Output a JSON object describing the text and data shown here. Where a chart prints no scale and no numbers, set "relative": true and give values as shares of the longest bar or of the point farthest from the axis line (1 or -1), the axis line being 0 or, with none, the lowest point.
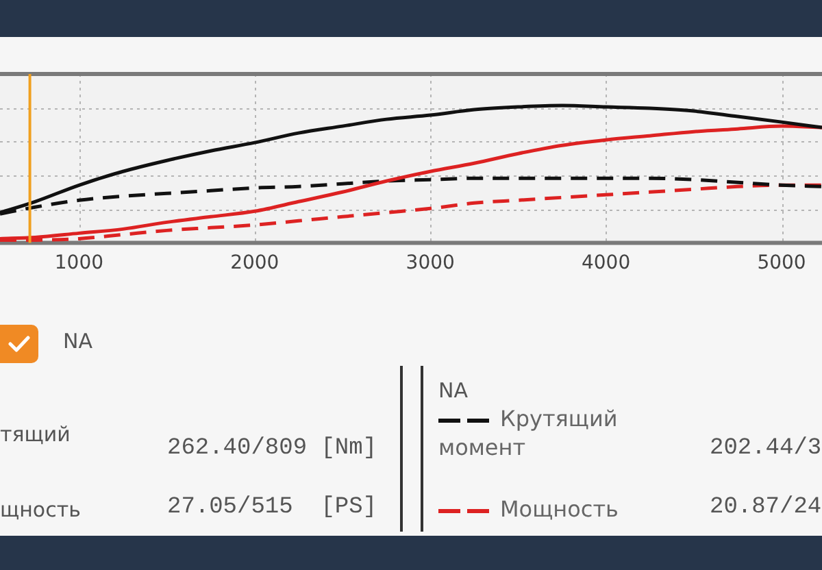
{
  "chart_data": {
    "type": "line",
    "relative": true,
    "x": [
      550,
      750,
      1000,
      1250,
      1500,
      1750,
      2000,
      2250,
      2500,
      2750,
      3000,
      3250,
      3500,
      3750,
      4000,
      4250,
      4500,
      4750,
      5000,
      5230
    ],
    "series": [
      {
        "color": "#111111",
        "line_style": "solid",
        "values": [
          0.22,
          0.3,
          0.42,
          0.52,
          0.6,
          0.67,
          0.73,
          0.8,
          0.85,
          0.9,
          0.93,
          0.97,
          0.99,
          1.0,
          0.99,
          0.98,
          0.96,
          0.92,
          0.88,
          0.84
        ]
      },
      {
        "color": "#dd2222",
        "line_style": "solid",
        "values": [
          0.03,
          0.04,
          0.07,
          0.1,
          0.15,
          0.19,
          0.23,
          0.3,
          0.37,
          0.45,
          0.52,
          0.58,
          0.65,
          0.71,
          0.75,
          0.78,
          0.81,
          0.83,
          0.85,
          0.84
        ]
      },
      {
        "name": "Крутящий момент",
        "color": "#111111",
        "line_style": "dashed",
        "values": [
          0.21,
          0.26,
          0.31,
          0.34,
          0.36,
          0.38,
          0.4,
          0.41,
          0.43,
          0.45,
          0.46,
          0.47,
          0.47,
          0.47,
          0.47,
          0.47,
          0.46,
          0.44,
          0.42,
          0.41
        ]
      },
      {
        "name": "Мощность",
        "color": "#dd2222",
        "line_style": "dashed",
        "values": [
          0.02,
          0.02,
          0.03,
          0.06,
          0.09,
          0.11,
          0.13,
          0.16,
          0.19,
          0.22,
          0.25,
          0.29,
          0.31,
          0.33,
          0.35,
          0.37,
          0.39,
          0.41,
          0.42,
          0.42
        ]
      }
    ],
    "xlim": [
      550,
      5230
    ],
    "xticks": [
      1000,
      2000,
      3000,
      4000,
      5000
    ],
    "grid": true,
    "marker": "none",
    "legend": "bottom",
    "legend_title": "NA",
    "ref_lines": [
      {
        "axis": "x",
        "value": 720,
        "color": "#f0a020"
      }
    ],
    "annotations": [
      "NA",
      "тящий",
      "262.40/809 [Nm]",
      "щность",
      "27.05/515  [PS]",
      "202.44/3",
      "20.87/24"
    ]
  }
}
